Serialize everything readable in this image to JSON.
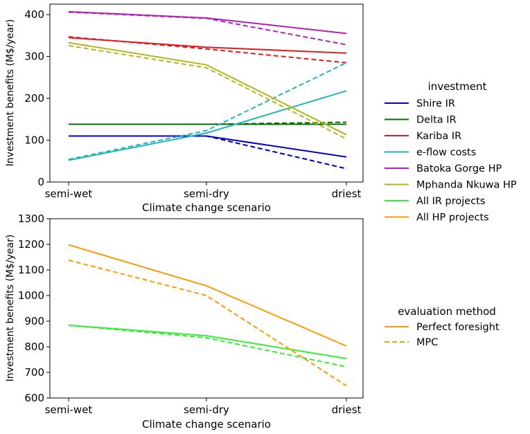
{
  "chart_data": [
    {
      "type": "line",
      "xlabel": "Climate change scenario",
      "ylabel": "Investment benefits (M$/year)",
      "categories": [
        "semi-wet",
        "semi-dry",
        "driest"
      ],
      "ylim": [
        0,
        425
      ],
      "yticks": [
        0,
        100,
        200,
        300,
        400
      ],
      "series": [
        {
          "name": "Shire IR",
          "color": "#0000cc",
          "perfect_foresight": [
            110,
            110,
            60
          ],
          "mpc": [
            110,
            110,
            32
          ]
        },
        {
          "name": "Delta IR",
          "color": "#007000",
          "perfect_foresight": [
            138,
            138,
            138
          ],
          "mpc": [
            138,
            138,
            143
          ]
        },
        {
          "name": "Kariba IR",
          "color": "#e31a1c",
          "perfect_foresight": [
            345,
            322,
            308
          ],
          "mpc": [
            347,
            318,
            285
          ]
        },
        {
          "name": "e-flow costs",
          "color": "#1fb5b5",
          "perfect_foresight": [
            52,
            117,
            218
          ],
          "mpc": [
            54,
            123,
            285
          ]
        },
        {
          "name": "Batoka Gorge HP",
          "color": "#b01fb8",
          "perfect_foresight": [
            407,
            392,
            355
          ],
          "mpc": [
            406,
            391,
            328
          ]
        },
        {
          "name": "Mphanda Nkuwa HP",
          "color": "#b5b51c",
          "perfect_foresight": [
            333,
            280,
            113
          ],
          "mpc": [
            326,
            273,
            103
          ]
        }
      ]
    },
    {
      "type": "line",
      "xlabel": "Climate change scenario",
      "ylabel": "Investment benefits (M$/year)",
      "categories": [
        "semi-wet",
        "semi-dry",
        "driest"
      ],
      "ylim": [
        600,
        1300
      ],
      "yticks": [
        600,
        700,
        800,
        900,
        1000,
        1100,
        1200,
        1300
      ],
      "series": [
        {
          "name": "All IR projects",
          "color": "#33ee33",
          "perfect_foresight": [
            884,
            843,
            754
          ],
          "mpc": [
            884,
            835,
            722
          ]
        },
        {
          "name": "All HP projects",
          "color": "#ff9900",
          "perfect_foresight": [
            1198,
            1038,
            803
          ],
          "mpc": [
            1138,
            1000,
            648
          ]
        }
      ]
    }
  ],
  "legend_investment": {
    "title": "investment",
    "entries": [
      {
        "label": "Shire IR",
        "color": "#0000cc"
      },
      {
        "label": "Delta IR",
        "color": "#007000"
      },
      {
        "label": "Kariba IR",
        "color": "#e31a1c"
      },
      {
        "label": "e-flow costs",
        "color": "#1fb5b5"
      },
      {
        "label": "Batoka Gorge HP",
        "color": "#b01fb8"
      },
      {
        "label": "Mphanda Nkuwa HP",
        "color": "#b5b51c"
      },
      {
        "label": "All IR projects",
        "color": "#33ee33"
      },
      {
        "label": "All HP projects",
        "color": "#ff9900"
      }
    ]
  },
  "legend_method": {
    "title": "evaluation method",
    "entries": [
      {
        "label": "Perfect foresight",
        "style": "solid",
        "color": "#ff9900"
      },
      {
        "label": "MPC",
        "style": "dashed",
        "color": "#ff9900"
      }
    ]
  }
}
